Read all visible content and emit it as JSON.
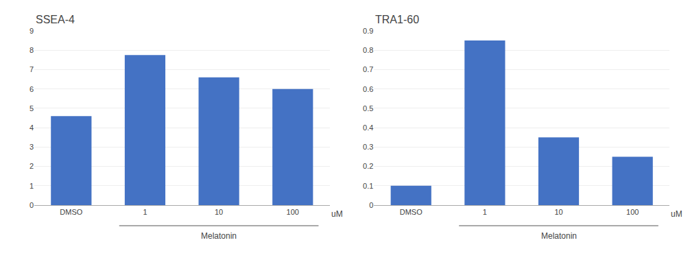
{
  "chart_data": [
    {
      "type": "bar",
      "title": "SSEA-4",
      "categories": [
        "DMSO",
        "1",
        "10",
        "100"
      ],
      "values": [
        4.6,
        7.75,
        6.6,
        6.0
      ],
      "color": "#4472C4",
      "ylim": [
        0,
        9
      ],
      "yticks": [
        0,
        1,
        2,
        3,
        4,
        5,
        6,
        7,
        8,
        9
      ],
      "grid": true,
      "annotations": [
        "uM",
        "Melatonin"
      ]
    },
    {
      "type": "bar",
      "title": "TRA1-60",
      "categories": [
        "DMSO",
        "1",
        "10",
        "100"
      ],
      "values": [
        0.1,
        0.85,
        0.35,
        0.25
      ],
      "color": "#4472C4",
      "ylim": [
        0,
        0.9
      ],
      "yticks": [
        0,
        0.1,
        0.2,
        0.3,
        0.4,
        0.5,
        0.6,
        0.7,
        0.8,
        0.9
      ],
      "grid": true,
      "annotations": [
        "uM",
        "Melatonin"
      ]
    }
  ]
}
